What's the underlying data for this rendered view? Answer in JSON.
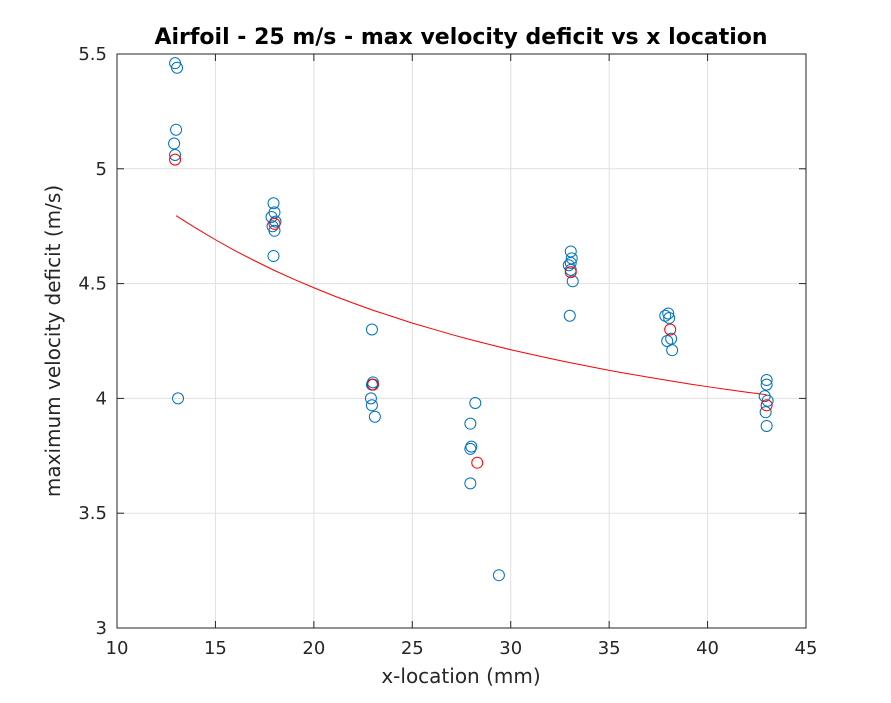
{
  "chart_data": {
    "type": "scatter",
    "title": "Airfoil - 25 m/s - max velocity deficit vs x location",
    "xlabel": "x-location (mm)",
    "ylabel": "maximum velocity deficit (m/s)",
    "xlim": [
      10,
      45
    ],
    "ylim": [
      3,
      5.5
    ],
    "xticks": [
      "10",
      "15",
      "20",
      "25",
      "30",
      "35",
      "40",
      "45"
    ],
    "yticks": [
      "3",
      "3.5",
      "4",
      "4.5",
      "5",
      "5.5"
    ],
    "grid": true,
    "box": true,
    "colors": {
      "samples": "#0072BD",
      "means": "#FF0000",
      "fit": "#FF0000"
    },
    "series": [
      {
        "role": "samples",
        "marker": "circle-open",
        "points": [
          [
            12.95,
            5.46
          ],
          [
            13.05,
            5.44
          ],
          [
            13.0,
            5.17
          ],
          [
            12.9,
            5.11
          ],
          [
            12.95,
            5.06
          ],
          [
            13.1,
            4.0
          ],
          [
            17.95,
            4.85
          ],
          [
            18.0,
            4.81
          ],
          [
            17.85,
            4.79
          ],
          [
            18.05,
            4.77
          ],
          [
            17.9,
            4.75
          ],
          [
            18.0,
            4.73
          ],
          [
            17.95,
            4.62
          ],
          [
            22.95,
            4.3
          ],
          [
            23.0,
            4.07
          ],
          [
            22.95,
            4.06
          ],
          [
            23.0,
            4.06
          ],
          [
            22.9,
            4.0
          ],
          [
            22.95,
            3.97
          ],
          [
            23.1,
            3.92
          ],
          [
            28.2,
            3.98
          ],
          [
            27.95,
            3.89
          ],
          [
            28.0,
            3.79
          ],
          [
            27.95,
            3.78
          ],
          [
            27.95,
            3.63
          ],
          [
            29.4,
            3.23
          ],
          [
            33.05,
            4.64
          ],
          [
            33.1,
            4.61
          ],
          [
            33.05,
            4.59
          ],
          [
            32.95,
            4.58
          ],
          [
            33.05,
            4.56
          ],
          [
            33.15,
            4.51
          ],
          [
            33.0,
            4.36
          ],
          [
            38.0,
            4.37
          ],
          [
            37.85,
            4.36
          ],
          [
            38.05,
            4.35
          ],
          [
            38.15,
            4.26
          ],
          [
            37.95,
            4.25
          ],
          [
            38.2,
            4.21
          ],
          [
            43.0,
            4.08
          ],
          [
            43.0,
            4.06
          ],
          [
            42.9,
            4.01
          ],
          [
            43.05,
            3.99
          ],
          [
            42.95,
            3.94
          ],
          [
            43.0,
            3.88
          ]
        ]
      },
      {
        "role": "means",
        "marker": "circle-open",
        "points": [
          [
            12.95,
            5.04
          ],
          [
            18.0,
            4.76
          ],
          [
            23.0,
            4.06
          ],
          [
            28.3,
            3.72
          ],
          [
            33.05,
            4.55
          ],
          [
            38.1,
            4.3
          ],
          [
            43.0,
            3.97
          ]
        ]
      },
      {
        "role": "fit",
        "line": "solid",
        "x": [
          13,
          14,
          15,
          16,
          17,
          18,
          19,
          20,
          21,
          22,
          23,
          24,
          25,
          26,
          27,
          28,
          29,
          30,
          31,
          32,
          33,
          34,
          35,
          36,
          37,
          38,
          39,
          40,
          41,
          42,
          43
        ],
        "y": [
          4.796,
          4.742,
          4.691,
          4.643,
          4.599,
          4.557,
          4.518,
          4.482,
          4.447,
          4.415,
          4.384,
          4.356,
          4.328,
          4.303,
          4.278,
          4.255,
          4.233,
          4.212,
          4.193,
          4.174,
          4.156,
          4.139,
          4.122,
          4.107,
          4.092,
          4.078,
          4.064,
          4.051,
          4.039,
          4.027,
          4.016
        ]
      }
    ]
  }
}
